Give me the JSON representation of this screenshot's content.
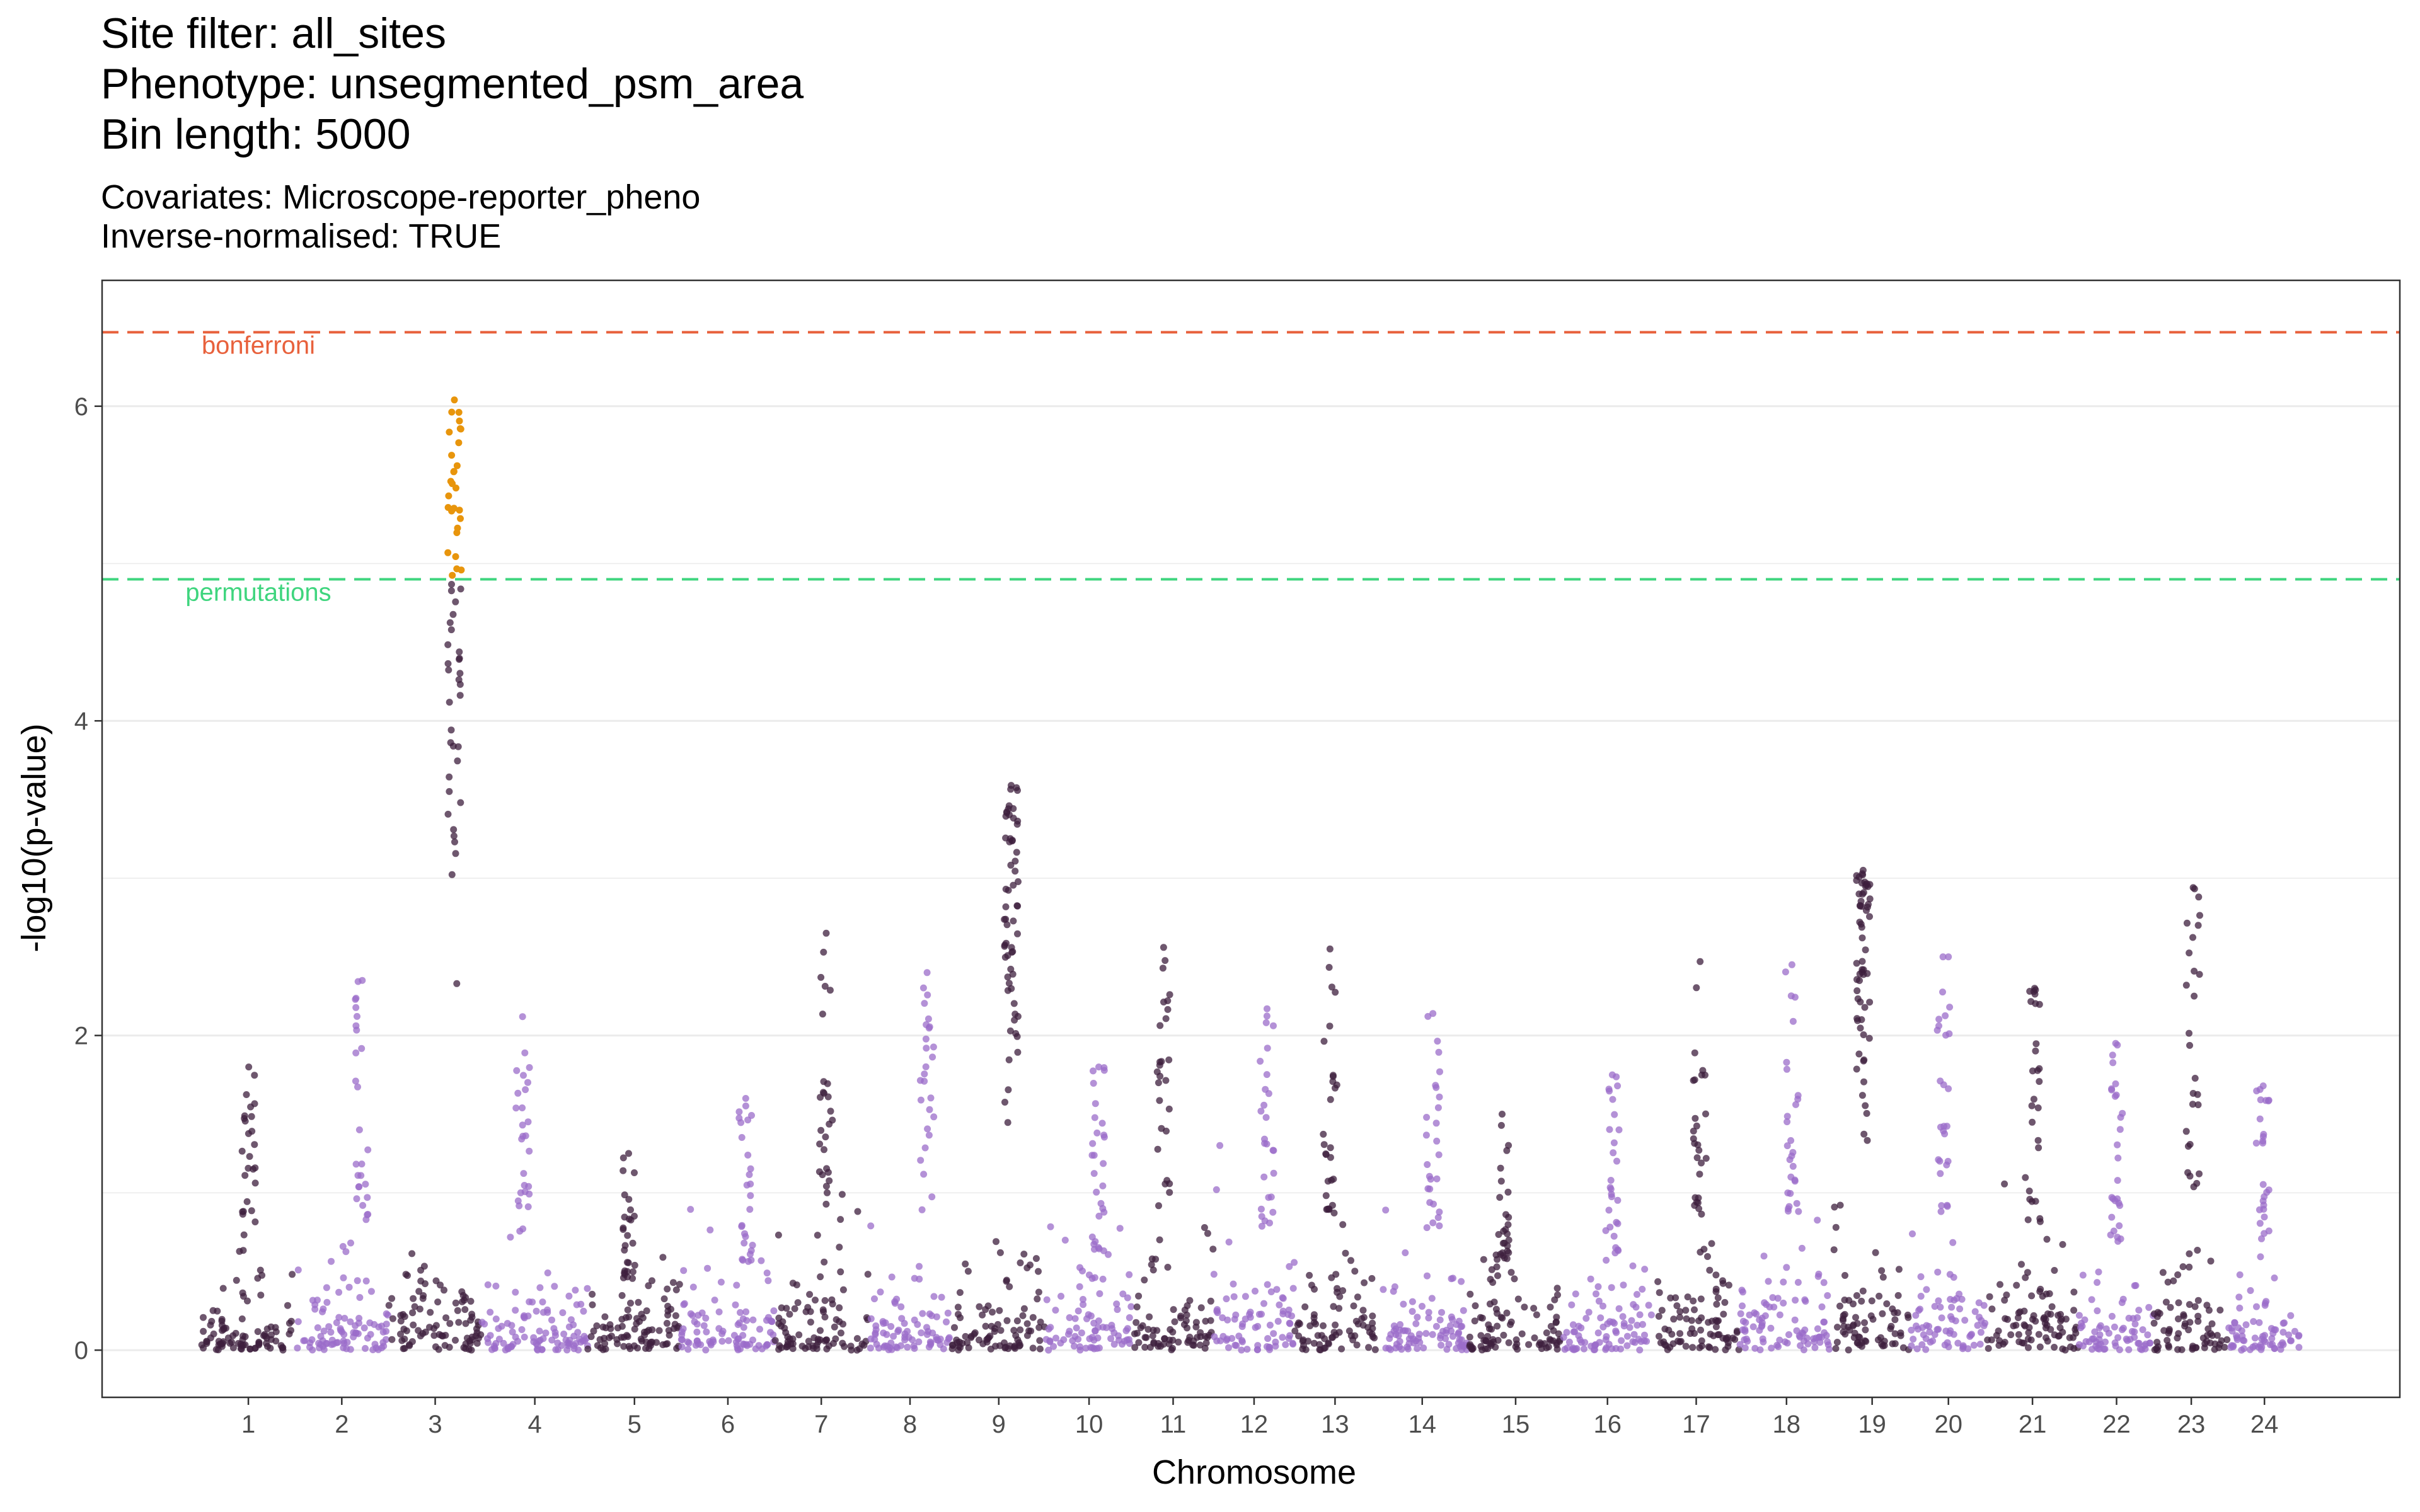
{
  "chart_data": {
    "type": "scatter",
    "title_lines": [
      "Site filter: all_sites",
      "Phenotype: unsegmented_psm_area",
      "Bin length: 5000"
    ],
    "subtitle_lines": [
      "Covariates: Microscope-reporter_pheno",
      "Inverse-normalised: TRUE"
    ],
    "xlabel": "Chromosome",
    "ylabel": "-log10(p-value)",
    "ylim": [
      -0.3,
      6.8
    ],
    "yticks": [
      0,
      2,
      4,
      6
    ],
    "grid": true,
    "colors": {
      "odd_chromosome": "#3d1f3d",
      "even_chromosome": "#9b6cc9",
      "significant": "#e8950c"
    },
    "thresholds": [
      {
        "name": "bonferroni",
        "value": 6.47,
        "color": "#e8613c"
      },
      {
        "name": "permutations",
        "value": 4.9,
        "color": "#3fd57e"
      }
    ],
    "chromosomes": [
      {
        "label": "1",
        "peak": 1.8,
        "base": 0.7
      },
      {
        "label": "2",
        "peak": 2.35,
        "base": 0.85
      },
      {
        "label": "3",
        "peak": 6.04,
        "base": 1.0
      },
      {
        "label": "4",
        "peak": 2.12,
        "base": 0.75
      },
      {
        "label": "5",
        "peak": 1.25,
        "base": 0.75
      },
      {
        "label": "6",
        "peak": 1.6,
        "base": 0.85
      },
      {
        "label": "7",
        "peak": 2.65,
        "base": 1.0
      },
      {
        "label": "8",
        "peak": 2.4,
        "base": 0.75
      },
      {
        "label": "9",
        "peak": 3.59,
        "base": 1.0
      },
      {
        "label": "10",
        "peak": 1.8,
        "base": 1.2
      },
      {
        "label": "11",
        "peak": 2.56,
        "base": 0.9
      },
      {
        "label": "12",
        "peak": 2.17,
        "base": 1.0
      },
      {
        "label": "13",
        "peak": 2.55,
        "base": 0.85
      },
      {
        "label": "14",
        "peak": 2.14,
        "base": 0.9
      },
      {
        "label": "15",
        "peak": 1.5,
        "base": 0.7
      },
      {
        "label": "16",
        "peak": 1.75,
        "base": 0.8
      },
      {
        "label": "17",
        "peak": 2.47,
        "base": 1.0
      },
      {
        "label": "18",
        "peak": 2.45,
        "base": 1.0
      },
      {
        "label": "19",
        "peak": 3.05,
        "base": 1.3
      },
      {
        "label": "20",
        "peak": 2.5,
        "base": 1.0
      },
      {
        "label": "21",
        "peak": 2.3,
        "base": 1.3
      },
      {
        "label": "22",
        "peak": 1.95,
        "base": 1.0
      },
      {
        "label": "23",
        "peak": 2.94,
        "base": 1.0
      },
      {
        "label": "24",
        "peak": 1.68,
        "base": 0.9
      }
    ]
  }
}
